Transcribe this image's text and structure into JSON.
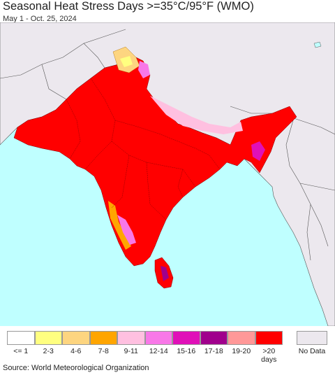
{
  "header": {
    "title": "Seasonal Heat Stress Days >=35°C/95°F (WMO)",
    "subtitle": "May 1 - Oct. 25, 2024"
  },
  "legend": {
    "items": [
      {
        "label": "<= 1",
        "color": "#ffffff"
      },
      {
        "label": "2-3",
        "color": "#ffff80"
      },
      {
        "label": "4-6",
        "color": "#fdd580"
      },
      {
        "label": "7-8",
        "color": "#ffa500"
      },
      {
        "label": "9-11",
        "color": "#ffc0e0"
      },
      {
        "label": "12-14",
        "color": "#f878e8"
      },
      {
        "label": "15-16",
        "color": "#e010b8"
      },
      {
        "label": "17-18",
        "color": "#a0008c"
      },
      {
        "label": "19-20",
        "color": "#ff9898"
      },
      {
        "label": ">20 days",
        "color": "#ff0000"
      }
    ],
    "no_data": {
      "label": "No Data",
      "color": "#ece8ee"
    }
  },
  "colors": {
    "ocean": "#bfffff",
    "land_outside": "#ece8ee",
    "heat_main": "#ff0000",
    "borders": "#555555"
  },
  "footer": {
    "source": "Source: World Meteorological Organization"
  }
}
